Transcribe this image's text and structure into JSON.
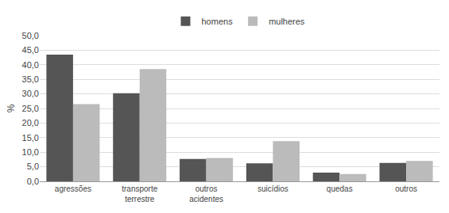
{
  "chart_data": {
    "type": "bar",
    "categories": [
      "agressões",
      "transporte\nterrestre",
      "outros\nacidentes",
      "suicídios",
      "quedas",
      "outros"
    ],
    "series": [
      {
        "name": "homens",
        "color": "#555555",
        "values": [
          43.5,
          30.2,
          7.7,
          6.2,
          3.0,
          6.3
        ]
      },
      {
        "name": "mulheres",
        "color": "#bbbbbb",
        "values": [
          26.5,
          38.5,
          8.0,
          13.8,
          2.5,
          7.0
        ]
      }
    ],
    "ylabel": "%",
    "ylim": [
      0,
      50
    ],
    "yticks": [
      {
        "value": 0.0,
        "label": "0,0"
      },
      {
        "value": 5.0,
        "label": "5,0"
      },
      {
        "value": 10.0,
        "label": "10,0"
      },
      {
        "value": 15.0,
        "label": "15,0"
      },
      {
        "value": 20.0,
        "label": "20,0"
      },
      {
        "value": 25.0,
        "label": "25,0"
      },
      {
        "value": 30.0,
        "label": "30,0"
      },
      {
        "value": 35.0,
        "label": "35,0"
      },
      {
        "value": 40.0,
        "label": "40,0"
      },
      {
        "value": 45.0,
        "label": "45,0"
      },
      {
        "value": 50.0,
        "label": "50,0"
      }
    ],
    "grid": true,
    "legend": "top"
  }
}
